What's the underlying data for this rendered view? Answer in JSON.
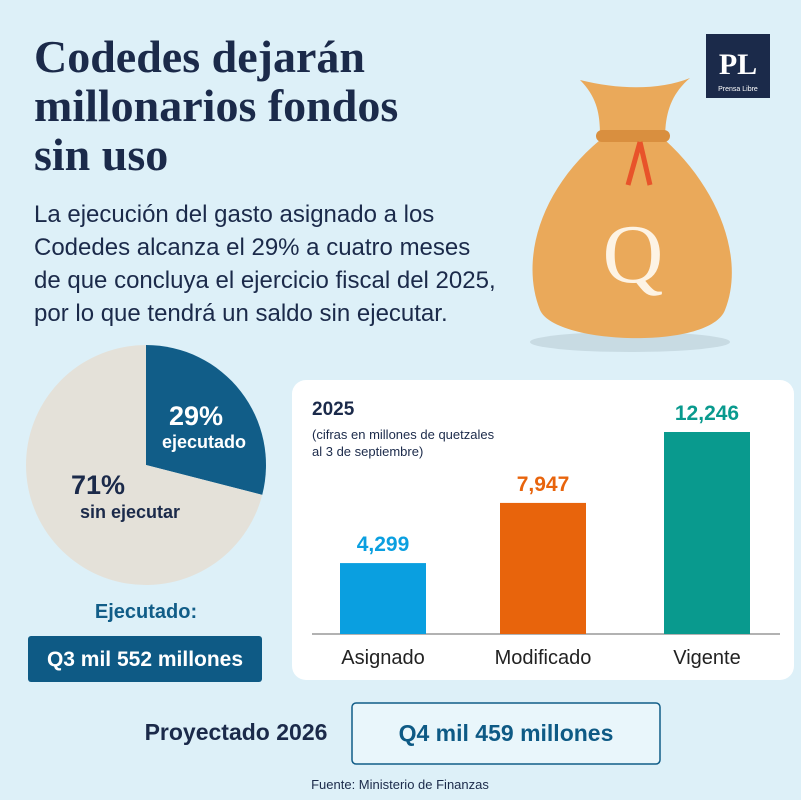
{
  "header": {
    "title": [
      "Codedes dejarán",
      "millonarios fondos",
      "sin uso"
    ],
    "description": [
      "La ejecución del gasto asignado a los",
      "Codedes alcanza el 29% a cuatro meses",
      "de que concluya el ejercicio fiscal del 2025,",
      "por lo que tendrá un saldo sin ejecutar."
    ]
  },
  "logo": {
    "mark": "PL",
    "name": "Prensa Libre"
  },
  "bag_label": "Q",
  "chart_data": [
    {
      "type": "pie",
      "categories": [
        "ejecutado",
        "sin ejecutar"
      ],
      "values": [
        29,
        71
      ],
      "value_labels": [
        "29%",
        "71%"
      ],
      "colors": [
        "#115d88",
        "#e4e1d9"
      ]
    },
    {
      "type": "bar",
      "title": "2025",
      "subtitle": [
        "(cifras en millones de quetzales",
        "al 3 de septiembre)"
      ],
      "categories": [
        "Asignado",
        "Modificado",
        "Vigente"
      ],
      "values": [
        4299,
        7947,
        12246
      ],
      "value_labels": [
        "4,299",
        "7,947",
        "12,246"
      ],
      "colors": [
        "#0a9fe0",
        "#e8640c",
        "#099a8e"
      ]
    }
  ],
  "executed": {
    "label": "Ejecutado:",
    "amount": "Q3 mil 552 millones"
  },
  "projected": {
    "label": "Proyectado 2026",
    "amount": "Q4 mil 459 millones"
  },
  "source": "Fuente: Ministerio de Finanzas"
}
